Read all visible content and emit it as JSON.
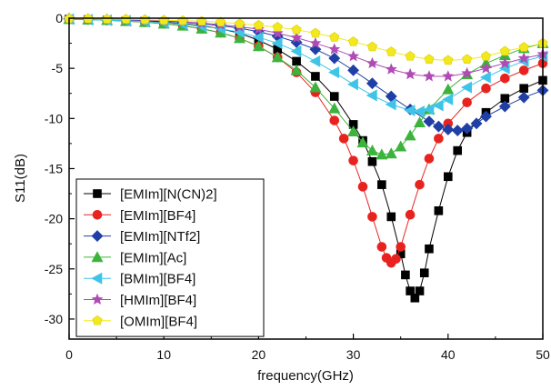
{
  "chart_data": {
    "type": "line",
    "xlabel": "frequency(GHz)",
    "ylabel": "S11(dB)",
    "xlim": [
      0,
      50
    ],
    "ylim": [
      -32,
      0
    ],
    "xticks": [
      0,
      10,
      20,
      30,
      40,
      50
    ],
    "yticks": [
      0,
      -5,
      -10,
      -15,
      -20,
      -25,
      -30
    ],
    "grid": false,
    "legend_position": "bottom-left",
    "series": [
      {
        "name": "[EMIm][N(CN)2]",
        "color": "#000000",
        "marker": "square",
        "x": [
          0,
          2,
          4,
          6,
          8,
          10,
          12,
          14,
          16,
          18,
          20,
          22,
          24,
          26,
          28,
          30,
          31,
          32,
          33,
          34,
          35,
          35.5,
          36,
          36.5,
          37,
          37.5,
          38,
          39,
          40,
          41,
          42,
          44,
          46,
          48,
          50
        ],
        "y": [
          -0.1,
          -0.15,
          -0.2,
          -0.25,
          -0.3,
          -0.4,
          -0.55,
          -0.75,
          -1.05,
          -1.5,
          -2.2,
          -3.1,
          -4.3,
          -5.8,
          -7.8,
          -10.6,
          -12.2,
          -14.3,
          -16.6,
          -19.8,
          -23.5,
          -25.6,
          -27.2,
          -27.9,
          -27.2,
          -25.4,
          -23.0,
          -19.2,
          -15.8,
          -13.2,
          -11.4,
          -9.4,
          -8.0,
          -7.0,
          -6.2
        ]
      },
      {
        "name": "[EMIm][BF4]",
        "color": "#e8231f",
        "marker": "circle",
        "x": [
          0,
          2,
          4,
          6,
          8,
          10,
          12,
          14,
          16,
          18,
          20,
          22,
          24,
          26,
          28,
          29,
          30,
          31,
          32,
          33,
          33.5,
          34,
          34.5,
          35,
          36,
          37,
          38,
          39,
          40,
          42,
          44,
          46,
          48,
          50
        ],
        "y": [
          -0.1,
          -0.15,
          -0.2,
          -0.3,
          -0.4,
          -0.55,
          -0.75,
          -1.05,
          -1.45,
          -2.0,
          -2.8,
          -3.9,
          -5.4,
          -7.4,
          -10.2,
          -12.0,
          -14.2,
          -16.8,
          -19.8,
          -22.8,
          -23.9,
          -24.4,
          -24.0,
          -22.8,
          -19.6,
          -16.6,
          -14.0,
          -12.0,
          -10.5,
          -8.4,
          -7.0,
          -6.0,
          -5.2,
          -4.5
        ]
      },
      {
        "name": "[EMIm][NTf2]",
        "color": "#1f3fa6",
        "marker": "diamond",
        "x": [
          0,
          2,
          4,
          6,
          8,
          10,
          12,
          14,
          16,
          18,
          20,
          22,
          24,
          26,
          28,
          30,
          32,
          34,
          36,
          38,
          39,
          40,
          41,
          42,
          43,
          44,
          46,
          48,
          50
        ],
        "y": [
          -0.05,
          -0.1,
          -0.15,
          -0.2,
          -0.25,
          -0.3,
          -0.4,
          -0.55,
          -0.75,
          -1.0,
          -1.35,
          -1.8,
          -2.4,
          -3.1,
          -4.0,
          -5.2,
          -6.5,
          -7.8,
          -9.1,
          -10.3,
          -10.8,
          -11.1,
          -11.2,
          -11.0,
          -10.5,
          -9.8,
          -8.8,
          -7.9,
          -7.2
        ]
      },
      {
        "name": "[EMIm][Ac]",
        "color": "#3cb33c",
        "marker": "triangle-up",
        "x": [
          0,
          2,
          4,
          6,
          8,
          10,
          12,
          14,
          16,
          18,
          20,
          22,
          24,
          26,
          28,
          30,
          31,
          32,
          33,
          34,
          35,
          36,
          37,
          38,
          40,
          42,
          44,
          46,
          48,
          50
        ],
        "y": [
          -0.1,
          -0.15,
          -0.2,
          -0.3,
          -0.4,
          -0.55,
          -0.75,
          -1.05,
          -1.45,
          -2.0,
          -2.8,
          -3.9,
          -5.2,
          -6.9,
          -9.0,
          -11.3,
          -12.4,
          -13.2,
          -13.6,
          -13.5,
          -12.8,
          -11.7,
          -10.4,
          -9.1,
          -7.1,
          -5.6,
          -4.5,
          -3.7,
          -3.0,
          -2.5
        ]
      },
      {
        "name": "[BMIm][BF4]",
        "color": "#3fc4e8",
        "marker": "triangle-left",
        "x": [
          0,
          2,
          4,
          6,
          8,
          10,
          12,
          14,
          16,
          18,
          20,
          22,
          24,
          26,
          28,
          30,
          32,
          34,
          36,
          37,
          38,
          39,
          40,
          42,
          44,
          46,
          48,
          50
        ],
        "y": [
          -0.1,
          -0.15,
          -0.2,
          -0.25,
          -0.35,
          -0.45,
          -0.6,
          -0.8,
          -1.05,
          -1.4,
          -1.9,
          -2.5,
          -3.3,
          -4.3,
          -5.4,
          -6.6,
          -7.7,
          -8.6,
          -9.2,
          -9.3,
          -9.1,
          -8.7,
          -8.1,
          -6.9,
          -5.9,
          -5.0,
          -4.3,
          -3.8
        ]
      },
      {
        "name": "[HMIm][BF4]",
        "color": "#b04bb4",
        "marker": "star",
        "x": [
          0,
          2,
          4,
          6,
          8,
          10,
          12,
          14,
          16,
          18,
          20,
          22,
          24,
          26,
          28,
          30,
          32,
          34,
          36,
          38,
          40,
          42,
          44,
          46,
          48,
          50
        ],
        "y": [
          -0.05,
          -0.1,
          -0.1,
          -0.15,
          -0.2,
          -0.25,
          -0.35,
          -0.5,
          -0.65,
          -0.85,
          -1.1,
          -1.5,
          -1.95,
          -2.5,
          -3.1,
          -3.8,
          -4.5,
          -5.1,
          -5.6,
          -5.8,
          -5.8,
          -5.5,
          -5.0,
          -4.5,
          -4.0,
          -3.6
        ]
      },
      {
        "name": "[OMIm][BF4]",
        "color": "#f2e81c",
        "marker": "pentagon",
        "x": [
          0,
          2,
          4,
          6,
          8,
          10,
          12,
          14,
          16,
          18,
          20,
          22,
          24,
          26,
          28,
          30,
          32,
          34,
          36,
          38,
          40,
          42,
          44,
          46,
          48,
          50
        ],
        "y": [
          -0.05,
          -0.05,
          -0.1,
          -0.1,
          -0.15,
          -0.2,
          -0.25,
          -0.3,
          -0.4,
          -0.55,
          -0.7,
          -0.9,
          -1.15,
          -1.5,
          -1.9,
          -2.35,
          -2.85,
          -3.35,
          -3.8,
          -4.1,
          -4.2,
          -4.1,
          -3.8,
          -3.3,
          -2.9,
          -2.5
        ]
      }
    ]
  }
}
